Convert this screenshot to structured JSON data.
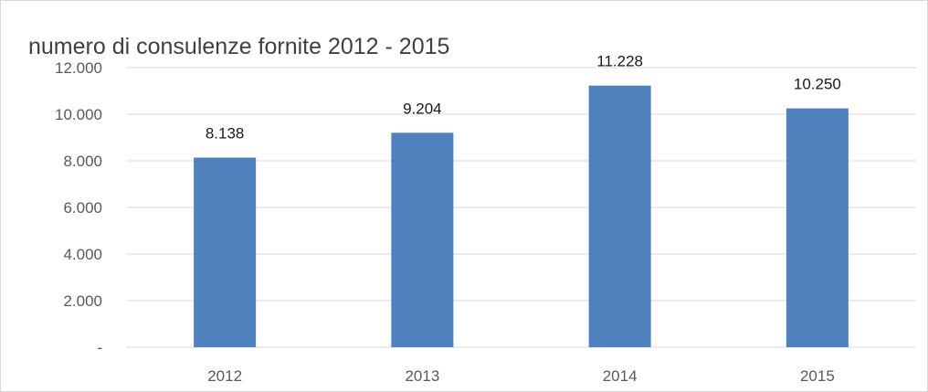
{
  "chart_data": {
    "type": "bar",
    "title": "numero di consulenze fornite 2012 - 2015",
    "categories": [
      "2012",
      "2013",
      "2014",
      "2015"
    ],
    "values": [
      8138,
      9204,
      11228,
      10250
    ],
    "data_labels": [
      "8.138",
      "9.204",
      "11.228",
      "10.250"
    ],
    "ylim": [
      0,
      12000
    ],
    "yticks": [
      0,
      2000,
      4000,
      6000,
      8000,
      10000,
      12000
    ],
    "ytick_labels": [
      "-",
      "2.000",
      "4.000",
      "6.000",
      "8.000",
      "10.000",
      "12.000"
    ],
    "xlabel": "",
    "ylabel": "",
    "grid": true,
    "legend": "none",
    "bar_color": "#4f81bd"
  }
}
